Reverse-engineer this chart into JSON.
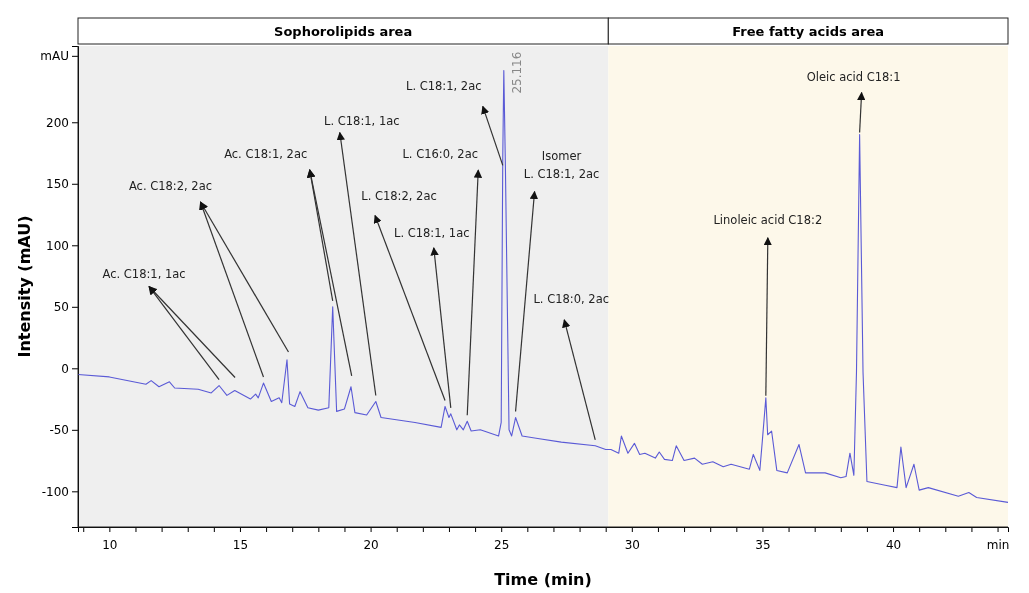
{
  "chart_data": {
    "type": "line",
    "xlabel": "Time (min)",
    "ylabel": "Intensity (mAU)",
    "xlim": [
      8.8,
      44.4
    ],
    "ylim": [
      -129,
      262
    ],
    "xticks": [
      {
        "value": 9,
        "label": null
      },
      10,
      {
        "value": 11,
        "label": null
      },
      {
        "value": 12,
        "label": null
      },
      {
        "value": 13,
        "label": null
      },
      {
        "value": 14,
        "label": null
      },
      15,
      {
        "value": 16,
        "label": null
      },
      {
        "value": 17,
        "label": null
      },
      {
        "value": 18,
        "label": null
      },
      {
        "value": 19,
        "label": null
      },
      20,
      {
        "value": 21,
        "label": null
      },
      {
        "value": 22,
        "label": null
      },
      {
        "value": 23,
        "label": null
      },
      {
        "value": 24,
        "label": null
      },
      25,
      {
        "value": 26,
        "label": null
      },
      {
        "value": 27,
        "label": null
      },
      {
        "value": 28,
        "label": null
      },
      {
        "value": 29,
        "label": null
      },
      30,
      {
        "value": 31,
        "label": null
      },
      {
        "value": 32,
        "label": null
      },
      {
        "value": 33,
        "label": null
      },
      {
        "value": 34,
        "label": null
      },
      35,
      {
        "value": 36,
        "label": null
      },
      {
        "value": 37,
        "label": null
      },
      {
        "value": 38,
        "label": null
      },
      {
        "value": 39,
        "label": null
      },
      40,
      {
        "value": 41,
        "label": null
      },
      {
        "value": 42,
        "label": null
      },
      {
        "value": 43,
        "label": null
      },
      {
        "value": 44,
        "label": "min"
      }
    ],
    "yticks": [
      -100,
      -50,
      0,
      50,
      100,
      150,
      200,
      {
        "value": 254,
        "label": "mAU"
      }
    ],
    "grid": false,
    "marker": "none",
    "line_style": "solid",
    "bands": [
      {
        "axis": "x",
        "from": 8.8,
        "to": 29.1,
        "label": "Sophorolipids area",
        "color": "#efefef"
      },
      {
        "axis": "x",
        "from": 29.1,
        "to": 44.4,
        "label": "Free fatty acids area",
        "color": "#fdf8ea"
      }
    ],
    "series": [
      {
        "color": "#5a5ad6",
        "x": [
          8.8,
          10,
          11.4,
          11.6,
          11.9,
          12.3,
          12.5,
          13.4,
          13.9,
          14.2,
          14.5,
          14.8,
          15.4,
          15.6,
          15.7,
          15.9,
          16.2,
          16.5,
          16.6,
          16.8,
          16.9,
          17.1,
          17.3,
          17.6,
          18.0,
          18.4,
          18.55,
          18.7,
          19.0,
          19.25,
          19.4,
          19.85,
          20.2,
          20.4,
          21.7,
          22.7,
          22.85,
          23.0,
          23.07,
          23.3,
          23.4,
          23.55,
          23.7,
          23.85,
          24.2,
          24.9,
          25.0,
          25.06,
          25.1,
          25.16,
          25.3,
          25.4,
          25.55,
          25.8,
          26.4,
          27.3,
          28.6,
          29.0,
          29.2,
          29.5,
          29.6,
          29.85,
          30.1,
          30.3,
          30.5,
          30.9,
          31.05,
          31.25,
          31.55,
          31.7,
          32.0,
          32.4,
          32.7,
          33.1,
          33.5,
          33.8,
          34.5,
          34.65,
          34.9,
          35.0,
          35.13,
          35.2,
          35.35,
          35.55,
          35.95,
          36.4,
          36.65,
          37.4,
          38.0,
          38.2,
          38.35,
          38.5,
          38.6,
          38.72,
          38.85,
          39.0,
          39.7,
          40.15,
          40.3,
          40.5,
          40.8,
          41.0,
          41.35,
          42.5,
          42.9,
          43.2,
          44.4
        ],
        "values": [
          -5,
          -7,
          -13,
          -10,
          -15,
          -11,
          -16,
          -17,
          -20,
          -14,
          -22,
          -18,
          -25,
          -21,
          -24,
          -12,
          -27,
          -24,
          -28,
          7,
          -29,
          -31,
          -19,
          -32,
          -34,
          -32,
          50,
          -35,
          -33,
          -15,
          -36,
          -38,
          -27,
          -40,
          -44,
          -48,
          -31,
          -40,
          -37,
          -50,
          -46,
          -50,
          -43,
          -51,
          -50,
          -55,
          -44,
          172,
          242,
          165,
          -50,
          -55,
          -40,
          -55,
          -57,
          -60,
          -63,
          -66,
          -66,
          -69,
          -55,
          -69,
          -61,
          -70,
          -69,
          -73,
          -68,
          -74,
          -75,
          -63,
          -75,
          -73,
          -78,
          -76,
          -80,
          -78,
          -82,
          -70,
          -83,
          -58,
          -24,
          -54,
          -51,
          -83,
          -85,
          -62,
          -85,
          -85,
          -89,
          -88,
          -69,
          -87,
          -3,
          190,
          -3,
          -92,
          -95,
          -97,
          -64,
          -97,
          -78,
          -99,
          -97,
          -104,
          -101,
          -105,
          -109
        ]
      }
    ],
    "annotations": [
      {
        "text": "Ac. C18:1, 1ac",
        "x": 14.2,
        "y": -14
      },
      {
        "text": "Ac. C18:2, 2ac",
        "x": 15.9,
        "y": -12
      },
      {
        "text": "Ac. C18:1, 2ac",
        "x": 18.55,
        "y": 50
      },
      {
        "text": "L. C18:1, 1ac",
        "x": 20.2,
        "y": -27
      },
      {
        "text": "L. C18:2, 2ac",
        "x": 22.85,
        "y": -31
      },
      {
        "text": "L. C18:1, 1ac",
        "x": 23.07,
        "y": -37
      },
      {
        "text": "L. C16:0, 2ac",
        "x": 23.7,
        "y": -43
      },
      {
        "text": "L. C18:1, 2ac",
        "x": 25.06,
        "y": 165
      },
      {
        "text": "Isomer\nL. C18:1, 2ac",
        "x": 25.55,
        "y": -40
      },
      {
        "text": "L. C18:0, 2ac",
        "x": 28.6,
        "y": -63
      },
      {
        "text": "Linoleic acid C18:2",
        "x": 35.13,
        "y": -24
      },
      {
        "text": "Oleic acid C18:1",
        "x": 38.72,
        "y": 190
      },
      {
        "text": "25.116",
        "x": 25.116,
        "y": 242
      }
    ]
  }
}
